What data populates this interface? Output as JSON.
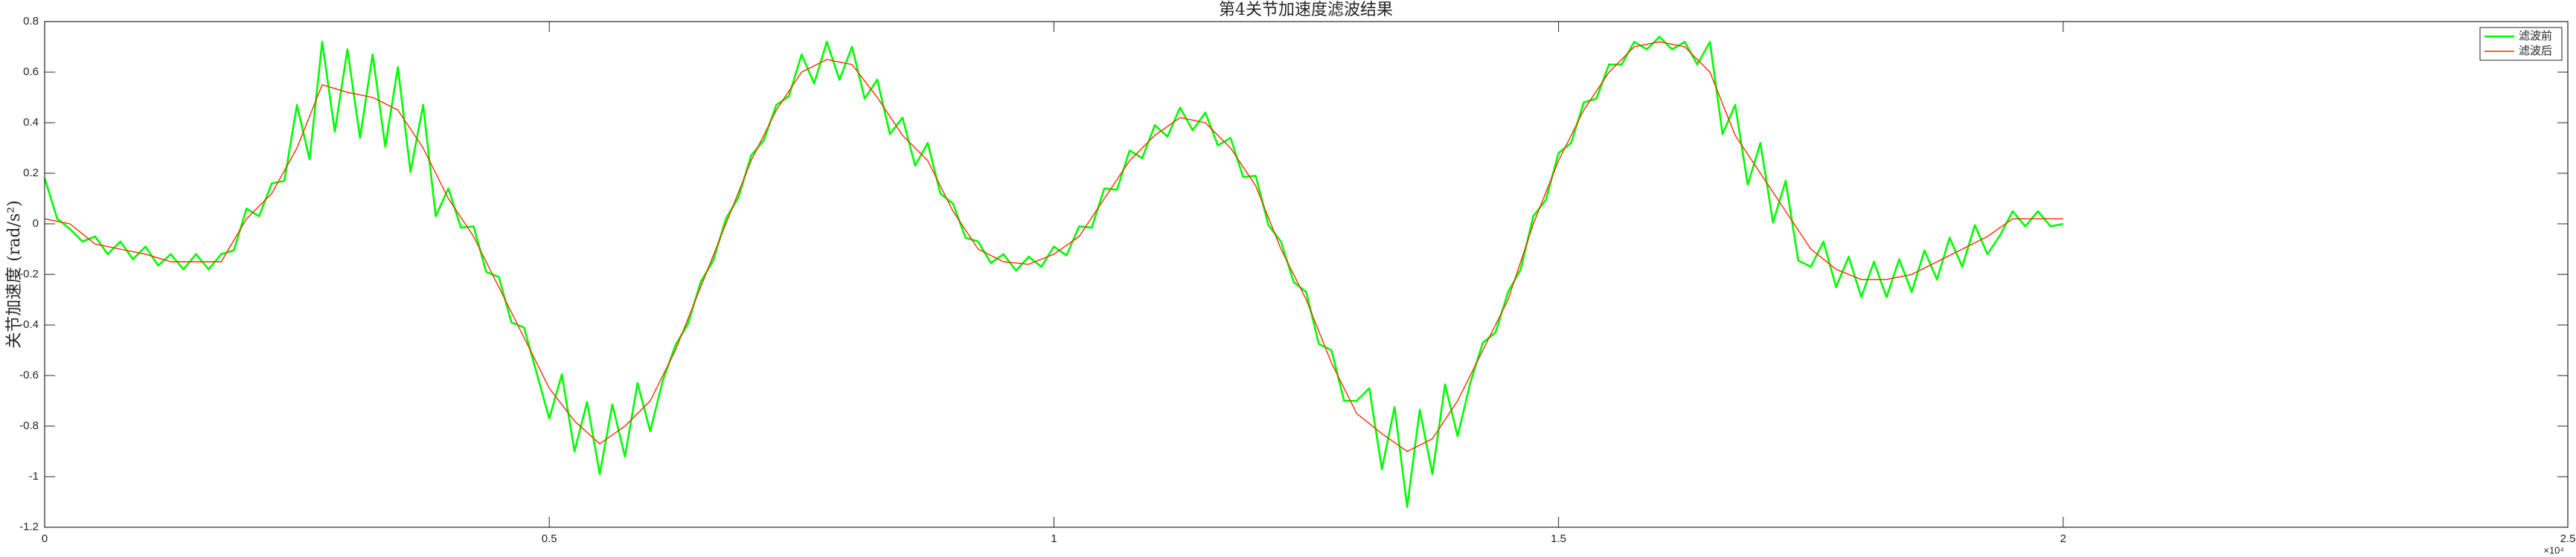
{
  "chart_data": {
    "type": "line",
    "title": "第4关节加速度滤波结果",
    "ylabel": "关节加速度 (rad/s²)",
    "x_multiplier": "×10⁴",
    "xlim": [
      0,
      25000
    ],
    "xticks": [
      0,
      {
        "value": 5000,
        "label": "0.5"
      },
      {
        "value": 10000,
        "label": "1"
      },
      {
        "value": 15000,
        "label": "1.5"
      },
      {
        "value": 20000,
        "label": "2"
      },
      {
        "value": 25000,
        "label": "2.5"
      }
    ],
    "ylim": [
      -1.2,
      0.8
    ],
    "yticks": [
      -1.2,
      -1,
      -0.8,
      -0.6,
      -0.4,
      -0.2,
      0,
      0.2,
      0.4,
      0.6,
      0.8
    ],
    "grid": false,
    "legend_position": "top-right",
    "x": [
      0,
      125,
      250,
      375,
      500,
      625,
      750,
      875,
      1000,
      1125,
      1250,
      1375,
      1500,
      1625,
      1750,
      1875,
      2000,
      2125,
      2250,
      2375,
      2500,
      2625,
      2750,
      2875,
      3000,
      3125,
      3250,
      3375,
      3500,
      3625,
      3750,
      3875,
      4000,
      4125,
      4250,
      4375,
      4500,
      4625,
      4750,
      4875,
      5000,
      5125,
      5250,
      5375,
      5500,
      5625,
      5750,
      5875,
      6000,
      6125,
      6250,
      6375,
      6500,
      6625,
      6750,
      6875,
      7000,
      7125,
      7250,
      7375,
      7500,
      7625,
      7750,
      7875,
      8000,
      8125,
      8250,
      8375,
      8500,
      8625,
      8750,
      8875,
      9000,
      9125,
      9250,
      9375,
      9500,
      9625,
      9750,
      9875,
      10000,
      10125,
      10250,
      10375,
      10500,
      10625,
      10750,
      10875,
      11000,
      11125,
      11250,
      11375,
      11500,
      11625,
      11750,
      11875,
      12000,
      12125,
      12250,
      12375,
      12500,
      12625,
      12750,
      12875,
      13000,
      13125,
      13250,
      13375,
      13500,
      13625,
      13750,
      13875,
      14000,
      14125,
      14250,
      14375,
      14500,
      14625,
      14750,
      14875,
      15000,
      15125,
      15250,
      15375,
      15500,
      15625,
      15750,
      15875,
      16000,
      16125,
      16250,
      16375,
      16500,
      16625,
      16750,
      16875,
      17000,
      17125,
      17250,
      17375,
      17500,
      17625,
      17750,
      17875,
      18000,
      18125,
      18250,
      18375,
      18500,
      18625,
      18750,
      18875,
      19000,
      19125,
      19250,
      19375,
      19500,
      19625,
      19750,
      19875,
      20000
    ],
    "series": [
      {
        "name": "滤波前",
        "color": "#00ff00",
        "width": 2.6,
        "values": [
          0.18,
          0.02,
          -0.02,
          -0.07,
          -0.05,
          -0.12,
          -0.07,
          -0.14,
          -0.09,
          -0.165,
          -0.12,
          -0.18,
          -0.12,
          -0.18,
          -0.12,
          -0.105,
          0.06,
          0.03,
          0.16,
          0.17,
          0.47,
          0.255,
          0.72,
          0.365,
          0.69,
          0.34,
          0.67,
          0.305,
          0.62,
          0.205,
          0.47,
          0.03,
          0.14,
          -0.015,
          -0.01,
          -0.19,
          -0.21,
          -0.39,
          -0.41,
          -0.59,
          -0.77,
          -0.595,
          -0.9,
          -0.705,
          -0.99,
          -0.715,
          -0.92,
          -0.63,
          -0.82,
          -0.62,
          -0.48,
          -0.395,
          -0.23,
          -0.145,
          0.02,
          0.105,
          0.27,
          0.33,
          0.47,
          0.505,
          0.67,
          0.555,
          0.72,
          0.57,
          0.7,
          0.495,
          0.57,
          0.355,
          0.42,
          0.23,
          0.32,
          0.12,
          0.08,
          -0.055,
          -0.07,
          -0.155,
          -0.12,
          -0.185,
          -0.13,
          -0.17,
          -0.09,
          -0.125,
          -0.01,
          -0.015,
          0.14,
          0.135,
          0.29,
          0.26,
          0.39,
          0.345,
          0.46,
          0.37,
          0.44,
          0.31,
          0.34,
          0.185,
          0.19,
          -0.005,
          -0.07,
          -0.23,
          -0.27,
          -0.475,
          -0.5,
          -0.7,
          -0.7,
          -0.65,
          -0.97,
          -0.725,
          -1.12,
          -0.735,
          -0.99,
          -0.635,
          -0.84,
          -0.63,
          -0.47,
          -0.43,
          -0.27,
          -0.18,
          0.03,
          0.095,
          0.28,
          0.32,
          0.48,
          0.495,
          0.63,
          0.63,
          0.72,
          0.69,
          0.74,
          0.69,
          0.72,
          0.63,
          0.72,
          0.355,
          0.47,
          0.155,
          0.32,
          0.005,
          0.17,
          -0.145,
          -0.17,
          -0.07,
          -0.25,
          -0.13,
          -0.29,
          -0.15,
          -0.29,
          -0.14,
          -0.27,
          -0.105,
          -0.22,
          -0.055,
          -0.17,
          -0.005,
          -0.12,
          -0.045,
          0.05,
          -0.01,
          0.05,
          -0.01,
          0
        ]
      },
      {
        "name": "滤波后",
        "color": "#ff2a00",
        "width": 1.4,
        "values": [
          0.02,
          0.01,
          0,
          -0.04,
          -0.08,
          -0.09,
          -0.1,
          -0.11,
          -0.12,
          -0.135,
          -0.15,
          -0.15,
          -0.15,
          -0.15,
          -0.15,
          -0.065,
          0.02,
          0.07,
          0.12,
          0.21,
          0.3,
          0.425,
          0.55,
          0.535,
          0.52,
          0.51,
          0.5,
          0.475,
          0.45,
          0.375,
          0.3,
          0.2,
          0.1,
          0.025,
          -0.05,
          -0.15,
          -0.25,
          -0.35,
          -0.45,
          -0.55,
          -0.65,
          -0.715,
          -0.78,
          -0.825,
          -0.87,
          -0.835,
          -0.8,
          -0.75,
          -0.7,
          -0.6,
          -0.5,
          -0.375,
          -0.25,
          -0.125,
          0,
          0.125,
          0.25,
          0.35,
          0.45,
          0.525,
          0.6,
          0.625,
          0.65,
          0.64,
          0.63,
          0.565,
          0.5,
          0.425,
          0.35,
          0.3,
          0.25,
          0.15,
          0.05,
          -0.025,
          -0.1,
          -0.125,
          -0.15,
          -0.155,
          -0.16,
          -0.14,
          -0.12,
          -0.085,
          -0.05,
          0.025,
          0.1,
          0.175,
          0.25,
          0.3,
          0.35,
          0.385,
          0.42,
          0.41,
          0.4,
          0.35,
          0.3,
          0.225,
          0.15,
          0.025,
          -0.1,
          -0.2,
          -0.3,
          -0.425,
          -0.55,
          -0.65,
          -0.75,
          -0.79,
          -0.83,
          -0.865,
          -0.9,
          -0.875,
          -0.85,
          -0.775,
          -0.7,
          -0.6,
          -0.5,
          -0.4,
          -0.3,
          -0.15,
          0,
          0.125,
          0.25,
          0.35,
          0.45,
          0.525,
          0.6,
          0.65,
          0.7,
          0.71,
          0.72,
          0.71,
          0.7,
          0.65,
          0.6,
          0.475,
          0.35,
          0.275,
          0.2,
          0.125,
          0.05,
          -0.025,
          -0.1,
          -0.14,
          -0.18,
          -0.2,
          -0.22,
          -0.22,
          -0.22,
          -0.21,
          -0.2,
          -0.175,
          -0.15,
          -0.125,
          -0.1,
          -0.075,
          -0.05,
          -0.015,
          0.02,
          0.02,
          0.02,
          0.02,
          0.02
        ]
      }
    ]
  }
}
